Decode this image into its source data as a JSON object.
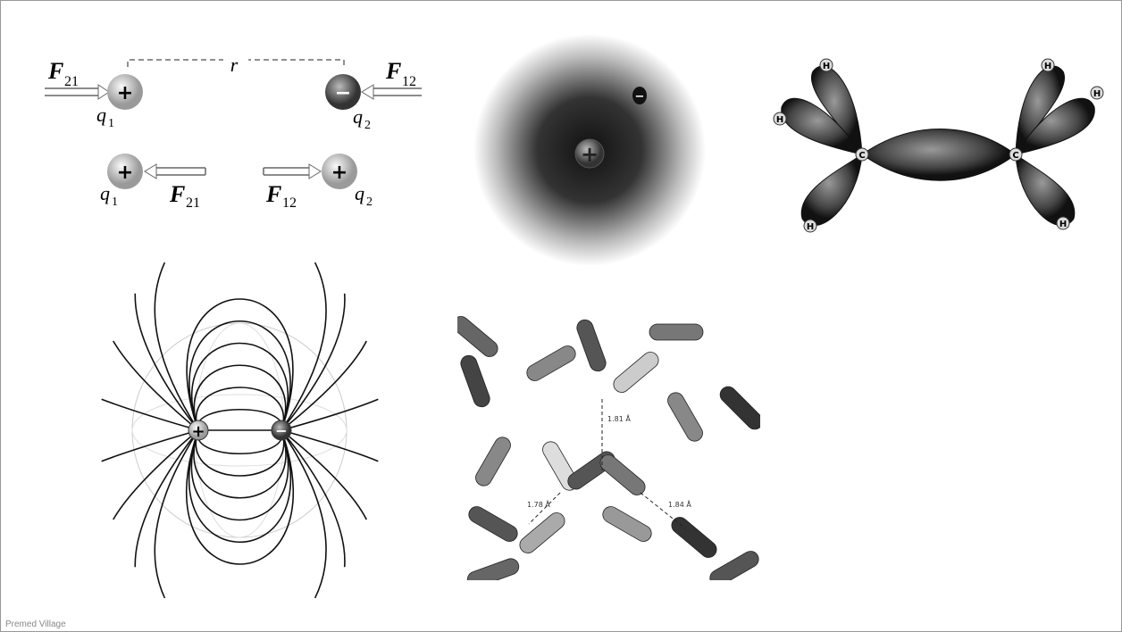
{
  "coulomb": {
    "distance": "r",
    "top_left": {
      "force": "F",
      "force_sub": "21",
      "charge": "q",
      "charge_sub": "1",
      "sign": "+"
    },
    "top_right": {
      "force": "F",
      "force_sub": "12",
      "charge": "q",
      "charge_sub": "2",
      "sign": "−"
    },
    "bottom_left": {
      "force": "F",
      "force_sub": "21",
      "charge": "q",
      "charge_sub": "1",
      "sign": "+"
    },
    "bottom_right": {
      "force": "F",
      "force_sub": "12",
      "charge": "q",
      "charge_sub": "2",
      "sign": "+"
    }
  },
  "atom": {
    "nucleus": "+",
    "electron": "−"
  },
  "ethylene": {
    "hydrogen": "H",
    "carbon": "C"
  },
  "dipole": {
    "positive": "+",
    "negative": "−"
  },
  "water": {
    "distances": [
      "1.81 Å",
      "1.78 Å",
      "1.84 Å"
    ]
  },
  "footer": "Premed Village"
}
